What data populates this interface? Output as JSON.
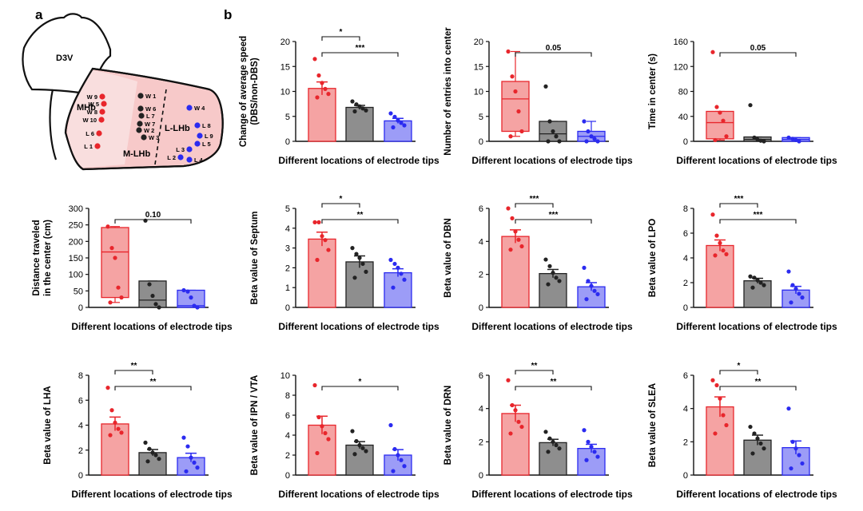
{
  "panel_labels": {
    "a": "a",
    "b": "b"
  },
  "colors": {
    "mhb": "#e8262c",
    "mhb_fill": "#f5a3a3",
    "middle": "#222222",
    "middle_fill": "#8e8e8e",
    "lhb": "#2b2bf0",
    "lhb_fill": "#9c9cf7",
    "region": "#f7c9c9"
  },
  "schematic": {
    "ventricle_label": "D3V",
    "regions": {
      "mhb": "MHb",
      "lhb": "L-LHb",
      "mlhb": "M-LHb"
    },
    "sites": [
      {
        "label": "W 9",
        "group": "mhb"
      },
      {
        "label": "W 5",
        "group": "mhb"
      },
      {
        "label": "W 8",
        "group": "mhb"
      },
      {
        "label": "W 10",
        "group": "mhb"
      },
      {
        "label": "L 6",
        "group": "mhb"
      },
      {
        "label": "L 1",
        "group": "mhb"
      },
      {
        "label": "W 1",
        "group": "middle"
      },
      {
        "label": "W 6",
        "group": "middle"
      },
      {
        "label": "L 7",
        "group": "middle"
      },
      {
        "label": "W 7",
        "group": "middle"
      },
      {
        "label": "W 2",
        "group": "middle"
      },
      {
        "label": "W 3",
        "group": "middle"
      },
      {
        "label": "W 4",
        "group": "lhb"
      },
      {
        "label": "L 8",
        "group": "lhb"
      },
      {
        "label": "L 9",
        "group": "lhb"
      },
      {
        "label": "L 5",
        "group": "lhb"
      },
      {
        "label": "L 3",
        "group": "lhb"
      },
      {
        "label": "L 2",
        "group": "lhb"
      },
      {
        "label": "L 4",
        "group": "lhb"
      }
    ]
  },
  "chart_data": [
    {
      "id": "speed",
      "type": "bar",
      "ylabel": [
        "Change of average speed",
        "(DBS/non-DBS)"
      ],
      "xlabel": "Different locations of electrode tips",
      "ylim": [
        0,
        20
      ],
      "yticks": [
        0,
        5,
        10,
        15,
        20
      ],
      "series": [
        {
          "name": "MHb",
          "mean": 10.6,
          "sem": 1.3,
          "points": [
            16.5,
            13.2,
            11.7,
            10.5,
            9.5,
            8.8
          ]
        },
        {
          "name": "Middle",
          "mean": 6.8,
          "sem": 0.4,
          "points": [
            8.0,
            7.4,
            7.0,
            6.6,
            6.2,
            6.0
          ]
        },
        {
          "name": "L-LHb",
          "mean": 4.1,
          "sem": 0.5,
          "points": [
            5.6,
            4.9,
            4.2,
            3.7,
            3.2,
            2.8
          ]
        }
      ],
      "sig": [
        {
          "from": 0,
          "to": 1,
          "label": "*"
        },
        {
          "from": 0,
          "to": 2,
          "label": "***"
        }
      ]
    },
    {
      "id": "entries",
      "type": "box",
      "ylabel": [
        "Number of entries into center"
      ],
      "xlabel": "Different locations of electrode tips",
      "ylim": [
        0,
        20
      ],
      "yticks": [
        0,
        5,
        10,
        15,
        20
      ],
      "series": [
        {
          "name": "MHb",
          "q1": 2,
          "median": 8.5,
          "q3": 12,
          "min": 1,
          "max": 18,
          "points": [
            18,
            13,
            10,
            6,
            2,
            1
          ]
        },
        {
          "name": "Middle",
          "q1": 0,
          "median": 1.5,
          "q3": 4,
          "min": 0,
          "max": 4,
          "points": [
            11,
            4,
            2,
            1,
            0,
            0
          ]
        },
        {
          "name": "L-LHb",
          "q1": 0,
          "median": 1,
          "q3": 2,
          "min": 0,
          "max": 4,
          "points": [
            4,
            2,
            1,
            0.5,
            0,
            0
          ]
        }
      ],
      "sig": [
        {
          "from": 0,
          "to": 2,
          "label": "0.05"
        }
      ]
    },
    {
      "id": "time_center",
      "type": "box",
      "ylabel": [
        "Time in center (s)"
      ],
      "xlabel": "Different locations of electrode tips",
      "ylim": [
        0,
        160
      ],
      "yticks": [
        0,
        40,
        80,
        120,
        160
      ],
      "series": [
        {
          "name": "MHb",
          "q1": 4,
          "median": 30,
          "q3": 48,
          "min": 2,
          "max": 48,
          "points": [
            143,
            55,
            46,
            33,
            8,
            2
          ]
        },
        {
          "name": "Middle",
          "q1": 0,
          "median": 3,
          "q3": 7,
          "min": 0,
          "max": 7,
          "points": [
            58,
            6,
            3,
            1,
            0
          ]
        },
        {
          "name": "L-LHb",
          "q1": 0,
          "median": 3,
          "q3": 6,
          "min": 0,
          "max": 6,
          "points": [
            6,
            4,
            2,
            0
          ]
        }
      ],
      "sig": [
        {
          "from": 0,
          "to": 2,
          "label": "0.05"
        }
      ]
    },
    {
      "id": "distance",
      "type": "box",
      "ylabel": [
        "Distance traveled",
        "in the center (cm)"
      ],
      "xlabel": "Different locations of electrode tips",
      "ylim": [
        0,
        300
      ],
      "yticks": [
        0,
        50,
        100,
        150,
        200,
        250,
        300
      ],
      "series": [
        {
          "name": "MHb",
          "q1": 30,
          "median": 168,
          "q3": 242,
          "min": 15,
          "max": 245,
          "points": [
            245,
            180,
            150,
            60,
            30,
            15
          ]
        },
        {
          "name": "Middle",
          "q1": 0,
          "median": 22,
          "q3": 80,
          "min": 0,
          "max": 80,
          "points": [
            263,
            70,
            35,
            10,
            0
          ]
        },
        {
          "name": "L-LHb",
          "q1": 0,
          "median": 5,
          "q3": 52,
          "min": 0,
          "max": 52,
          "points": [
            52,
            48,
            30,
            5,
            0
          ]
        }
      ],
      "sig": [
        {
          "from": 0,
          "to": 2,
          "label": "0.10"
        }
      ]
    },
    {
      "id": "septum",
      "type": "bar",
      "ylabel": [
        "Beta value of Septum"
      ],
      "xlabel": "Different locations of electrode tips",
      "ylim": [
        0,
        5
      ],
      "yticks": [
        0,
        1,
        2,
        3,
        4,
        5
      ],
      "series": [
        {
          "name": "MHb",
          "mean": 3.45,
          "sem": 0.35,
          "points": [
            4.3,
            4.3,
            3.6,
            3.4,
            2.9,
            2.4
          ]
        },
        {
          "name": "Middle",
          "mean": 2.3,
          "sem": 0.3,
          "points": [
            3.0,
            2.7,
            2.5,
            2.2,
            1.8,
            1.5
          ]
        },
        {
          "name": "L-LHb",
          "mean": 1.75,
          "sem": 0.2,
          "points": [
            2.4,
            2.2,
            2.0,
            1.7,
            1.4,
            1.0
          ]
        }
      ],
      "sig": [
        {
          "from": 0,
          "to": 1,
          "label": "*"
        },
        {
          "from": 0,
          "to": 2,
          "label": "**"
        }
      ]
    },
    {
      "id": "dbn",
      "type": "bar",
      "ylabel": [
        "Beta value of DBN"
      ],
      "xlabel": "Different locations of electrode tips",
      "ylim": [
        0,
        6
      ],
      "yticks": [
        0,
        2,
        4,
        6
      ],
      "series": [
        {
          "name": "MHb",
          "mean": 4.3,
          "sem": 0.4,
          "points": [
            6.0,
            5.4,
            4.6,
            4.1,
            3.7,
            3.5
          ]
        },
        {
          "name": "Middle",
          "mean": 2.05,
          "sem": 0.25,
          "points": [
            2.9,
            2.5,
            2.1,
            1.8,
            1.6,
            1.4
          ]
        },
        {
          "name": "L-LHb",
          "mean": 1.25,
          "sem": 0.25,
          "points": [
            2.4,
            1.6,
            1.3,
            1.0,
            0.8,
            0.5
          ]
        }
      ],
      "sig": [
        {
          "from": 0,
          "to": 1,
          "label": "***"
        },
        {
          "from": 0,
          "to": 2,
          "label": "***"
        }
      ]
    },
    {
      "id": "lpo",
      "type": "bar",
      "ylabel": [
        "Beta value of LPO"
      ],
      "xlabel": "Different locations of electrode tips",
      "ylim": [
        0,
        8
      ],
      "yticks": [
        0,
        2,
        4,
        6,
        8
      ],
      "series": [
        {
          "name": "MHb",
          "mean": 5.0,
          "sem": 0.45,
          "points": [
            7.5,
            5.8,
            5.2,
            4.6,
            4.3,
            4.2
          ]
        },
        {
          "name": "Middle",
          "mean": 2.15,
          "sem": 0.2,
          "points": [
            2.5,
            2.4,
            2.2,
            2.0,
            1.8,
            1.6
          ]
        },
        {
          "name": "L-LHb",
          "mean": 1.4,
          "sem": 0.3,
          "points": [
            2.9,
            1.8,
            1.5,
            1.1,
            0.8,
            0.4
          ]
        }
      ],
      "sig": [
        {
          "from": 0,
          "to": 1,
          "label": "***"
        },
        {
          "from": 0,
          "to": 2,
          "label": "***"
        }
      ]
    },
    {
      "id": "lha",
      "type": "bar",
      "ylabel": [
        "Beta value of LHA"
      ],
      "xlabel": "Different locations of electrode tips",
      "ylim": [
        0,
        8
      ],
      "yticks": [
        0,
        2,
        4,
        6,
        8
      ],
      "series": [
        {
          "name": "MHb",
          "mean": 4.1,
          "sem": 0.55,
          "points": [
            7.0,
            5.2,
            4.2,
            3.7,
            3.4,
            3.2
          ]
        },
        {
          "name": "Middle",
          "mean": 1.8,
          "sem": 0.25,
          "points": [
            2.6,
            2.1,
            1.8,
            1.6,
            1.3,
            1.1
          ]
        },
        {
          "name": "L-LHb",
          "mean": 1.4,
          "sem": 0.35,
          "points": [
            3.0,
            2.3,
            1.4,
            1.0,
            0.6,
            0.3
          ]
        }
      ],
      "sig": [
        {
          "from": 0,
          "to": 1,
          "label": "**"
        },
        {
          "from": 0,
          "to": 2,
          "label": "**"
        }
      ]
    },
    {
      "id": "ipn_vta",
      "type": "bar",
      "ylabel": [
        "Beta value of IPN / VTA"
      ],
      "xlabel": "Different locations of electrode tips",
      "ylim": [
        0,
        10
      ],
      "yticks": [
        0,
        2,
        4,
        6,
        8,
        10
      ],
      "series": [
        {
          "name": "MHb",
          "mean": 5.0,
          "sem": 0.9,
          "points": [
            9.0,
            5.8,
            4.9,
            4.2,
            3.6,
            2.2
          ]
        },
        {
          "name": "Middle",
          "mean": 3.0,
          "sem": 0.35,
          "points": [
            4.4,
            3.4,
            3.0,
            2.7,
            2.4,
            2.1
          ]
        },
        {
          "name": "L-LHb",
          "mean": 2.0,
          "sem": 0.55,
          "points": [
            5.0,
            2.6,
            2.0,
            1.5,
            0.9,
            0.4
          ]
        }
      ],
      "sig": [
        {
          "from": 0,
          "to": 2,
          "label": "*"
        }
      ]
    },
    {
      "id": "drn",
      "type": "bar",
      "ylabel": [
        "Beta value of DRN"
      ],
      "xlabel": "Different locations of electrode tips",
      "ylim": [
        0,
        6
      ],
      "yticks": [
        0,
        2,
        4,
        6
      ],
      "series": [
        {
          "name": "MHb",
          "mean": 3.7,
          "sem": 0.5,
          "points": [
            5.7,
            4.2,
            3.9,
            3.2,
            2.9,
            2.5
          ]
        },
        {
          "name": "Middle",
          "mean": 1.95,
          "sem": 0.2,
          "points": [
            2.6,
            2.2,
            2.0,
            1.8,
            1.6,
            1.4
          ]
        },
        {
          "name": "L-LHb",
          "mean": 1.6,
          "sem": 0.25,
          "points": [
            2.7,
            2.0,
            1.7,
            1.4,
            1.1,
            0.9
          ]
        }
      ],
      "sig": [
        {
          "from": 0,
          "to": 1,
          "label": "**"
        },
        {
          "from": 0,
          "to": 2,
          "label": "**"
        }
      ]
    },
    {
      "id": "slea",
      "type": "bar",
      "ylabel": [
        "Beta value of SLEA"
      ],
      "xlabel": "Different locations of electrode tips",
      "ylim": [
        0,
        6
      ],
      "yticks": [
        0,
        2,
        4,
        6
      ],
      "series": [
        {
          "name": "MHb",
          "mean": 4.1,
          "sem": 0.6,
          "points": [
            5.7,
            5.4,
            4.6,
            3.6,
            3.0,
            2.5
          ]
        },
        {
          "name": "Middle",
          "mean": 2.1,
          "sem": 0.3,
          "points": [
            2.9,
            2.5,
            2.2,
            1.9,
            1.6,
            1.3
          ]
        },
        {
          "name": "L-LHb",
          "mean": 1.65,
          "sem": 0.4,
          "points": [
            4.0,
            2.0,
            1.6,
            1.2,
            0.7,
            0.4
          ]
        }
      ],
      "sig": [
        {
          "from": 0,
          "to": 1,
          "label": "*"
        },
        {
          "from": 0,
          "to": 2,
          "label": "**"
        }
      ]
    }
  ]
}
